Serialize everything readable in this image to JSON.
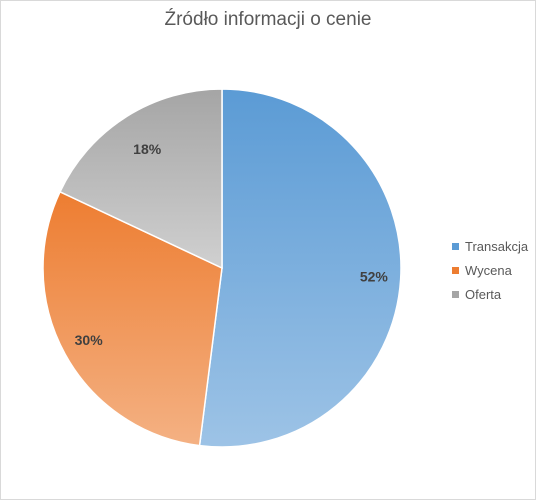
{
  "chart_data": {
    "type": "pie",
    "title": "Źródło informacji o cenie",
    "categories": [
      "Transakcja",
      "Wycena",
      "Oferta"
    ],
    "values": [
      52,
      30,
      18
    ],
    "data_labels": [
      "52%",
      "30%",
      "18%"
    ],
    "legend_position": "right",
    "colors": {
      "Transakcja": [
        "#5b9bd5",
        "#9dc3e6"
      ],
      "Wycena": [
        "#ed7d31",
        "#f4b183"
      ],
      "Oferta": [
        "#a5a5a5",
        "#d0d0d0"
      ]
    }
  }
}
